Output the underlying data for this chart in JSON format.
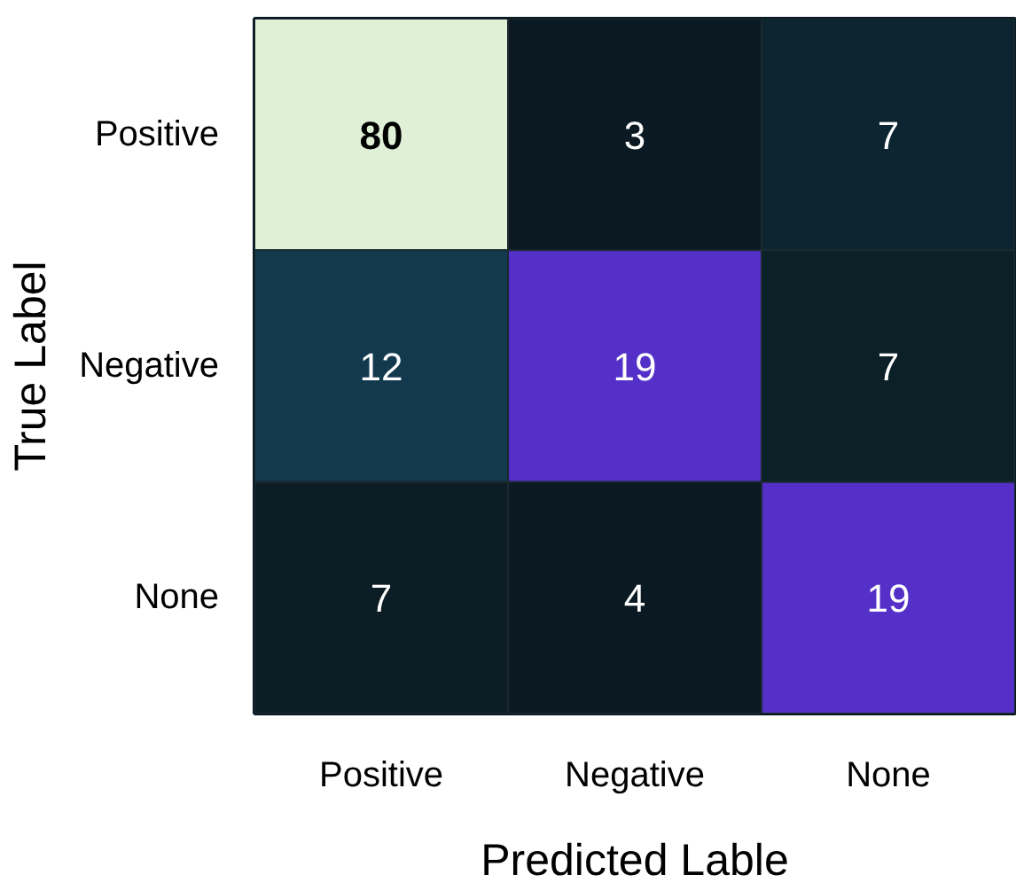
{
  "chart_data": {
    "type": "heatmap",
    "xlabel": "Predicted Lable",
    "ylabel": "True Label",
    "categories": [
      "Positive",
      "Negative",
      "None"
    ],
    "y_categories": [
      "Positive",
      "Negative",
      "None"
    ],
    "cells": [
      [
        80,
        3,
        7
      ],
      [
        12,
        19,
        7
      ],
      [
        7,
        4,
        19
      ]
    ],
    "colors": [
      [
        "#dff0d6",
        "#0b1a22",
        "#0d2530"
      ],
      [
        "#12394e",
        "#5430c8",
        "#0c2028"
      ],
      [
        "#0c1d25",
        "#0b1a22",
        "#5430c8"
      ]
    ],
    "data_labels": true
  }
}
